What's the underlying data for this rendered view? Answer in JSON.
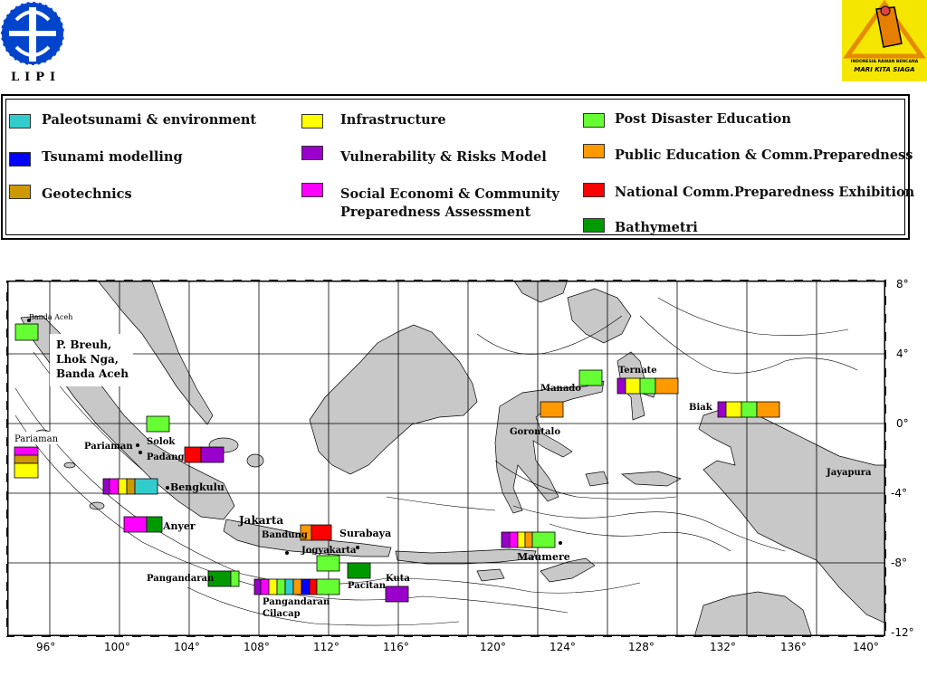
{
  "header": {
    "left_logo_text": "LIPI",
    "right_logo_caption_1": "INDONESIA RAWAN BENCANA",
    "right_logo_caption_2": "MARI KITA SIAGA"
  },
  "legend": {
    "items": [
      {
        "label": "Paleotsunami & environment",
        "color": "#33cccc"
      },
      {
        "label": "Tsunami modelling",
        "color": "#0000ff"
      },
      {
        "label": "Geotechnics",
        "color": "#cc9900"
      },
      {
        "label": "Infrastructure",
        "color": "#ffff00"
      },
      {
        "label": "Vulnerability & Risks Model",
        "color": "#9900cc"
      },
      {
        "label": "Social Economi & Community",
        "label2": "Preparedness Assessment",
        "color": "#ff00ff"
      },
      {
        "label": "Post Disaster Education",
        "color": "#66ff33"
      },
      {
        "label": "Public Education & Comm.Preparedness",
        "color": "#ff9900"
      },
      {
        "label": "National Comm.Preparedness Exhibition",
        "color": "#ff0000"
      },
      {
        "label": "Bathymetri",
        "color": "#009900"
      }
    ]
  },
  "map": {
    "lon_ticks": [
      "96°",
      "100°",
      "104°",
      "108°",
      "112°",
      "116°",
      "120°",
      "124°",
      "128°",
      "132°",
      "136°",
      "140°"
    ],
    "lat_ticks": [
      "8°",
      "4°",
      "0°",
      "-4°",
      "-8°",
      "-12°"
    ],
    "place_labels": {
      "banda_aceh": "Banda Aceh",
      "p_breuh": "P. Breuh,",
      "lhok_nga": "Lhok Nga,",
      "banda_aceh_2": "Banda Aceh",
      "pariaman_left": "Pariaman",
      "pariaman": "Pariaman",
      "solok": "Solok",
      "padang": "Padang",
      "bengkulu": "Bengkulu",
      "anyer": "Anyer",
      "jakarta": "Jakarta",
      "bandung": "Bandung",
      "surabaya": "Surabaya",
      "jogyakarta": "Jogyakarta",
      "pangandaran_left": "Pangandaran",
      "pangandaran": "Pangandaran",
      "cilacap": "Cilacap",
      "pacitan": "Pacitan",
      "kuta": "Kuta",
      "maumere": "Maumere",
      "gorontalo": "Gorontalo",
      "manado": "Manado",
      "ternate": "Ternate",
      "biak": "Biak",
      "jayapura": "Jayapura"
    }
  }
}
